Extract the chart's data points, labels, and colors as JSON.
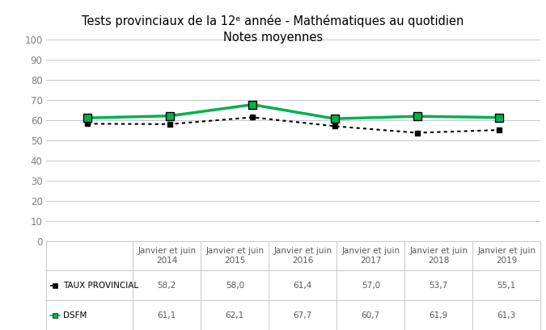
{
  "title_line1": "Tests provinciaux de la 12ᵉ année - Mathématiques au quotidien",
  "title_line2": "Notes moyennes",
  "categories": [
    "Janvier et juin\n2014",
    "Janvier et juin\n2015",
    "Janvier et juin\n2016",
    "Janvier et juin\n2017",
    "Janvier et juin\n2018",
    "Janvier et juin\n2019"
  ],
  "taux_provincial": [
    58.2,
    58.0,
    61.4,
    57.0,
    53.7,
    55.1
  ],
  "dsfm": [
    61.1,
    62.1,
    67.7,
    60.7,
    61.9,
    61.3
  ],
  "taux_label": "TAUX PROVINCIAL",
  "dsfm_label": "DSFM",
  "taux_color": "#000000",
  "dsfm_color": "#00b050",
  "ylim": [
    0,
    100
  ],
  "yticks": [
    0,
    10,
    20,
    30,
    40,
    50,
    60,
    70,
    80,
    90,
    100
  ],
  "background_color": "#ffffff",
  "grid_color": "#c8c8c8",
  "title_fontsize": 10.5,
  "tick_fontsize": 8.5,
  "table_fontsize": 7.5
}
